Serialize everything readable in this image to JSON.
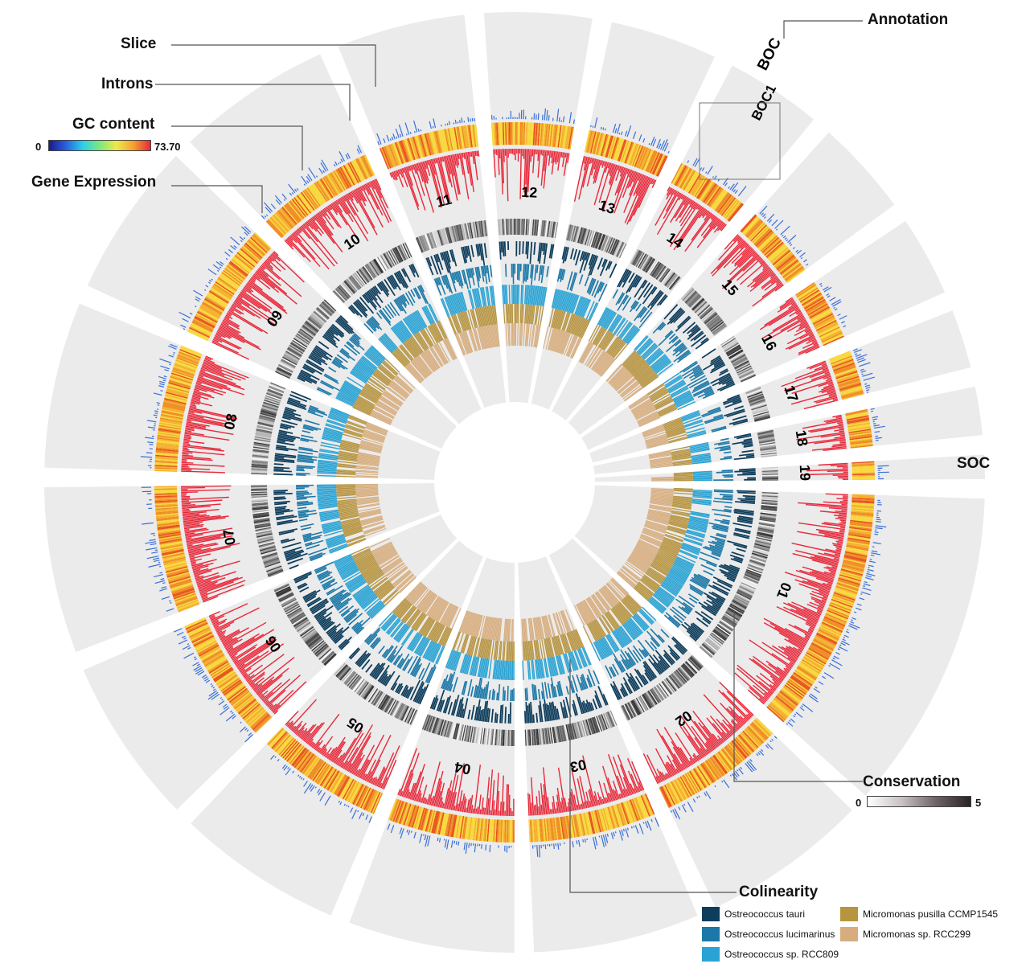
{
  "labels": {
    "slice": "Slice",
    "introns": "Introns",
    "gc_content": "GC content",
    "gene_expression": "Gene Expression",
    "annotation": "Annotation",
    "conservation": "Conservation",
    "colinearity": "Colinearity",
    "boc": "BOC",
    "boc1": "BOC1",
    "soc": "SOC"
  },
  "gc_scale": {
    "min": "0",
    "max": "73.70"
  },
  "conservation_scale": {
    "min": "0",
    "max": "5"
  },
  "chromosomes": [
    "01",
    "02",
    "03",
    "04",
    "05",
    "06",
    "07",
    "08",
    "09",
    "10",
    "11",
    "12",
    "13",
    "14",
    "15",
    "16",
    "17",
    "18",
    "19"
  ],
  "chromosome_sizes": [
    1.2,
    0.62,
    0.62,
    0.62,
    0.62,
    0.62,
    0.62,
    0.62,
    0.58,
    0.58,
    0.48,
    0.4,
    0.4,
    0.36,
    0.36,
    0.3,
    0.22,
    0.18,
    0.09
  ],
  "legend": [
    {
      "name": "Ostreococcus tauri",
      "color": "#0e3d5c"
    },
    {
      "name": "Ostreococcus lucimarinus",
      "color": "#1b78a8"
    },
    {
      "name": "Ostreococcus sp. RCC809",
      "color": "#2aa3d4"
    },
    {
      "name": "Micromonas pusilla CCMP1545",
      "color": "#b79440"
    },
    {
      "name": "Micromonas sp. RCC299",
      "color": "#d7ad7e"
    }
  ],
  "colors": {
    "slice_bg": "#ebebeb",
    "introns": "#3a6fd8",
    "expression": "#e8283a",
    "conservation_dark": "#3a3a3a"
  }
}
